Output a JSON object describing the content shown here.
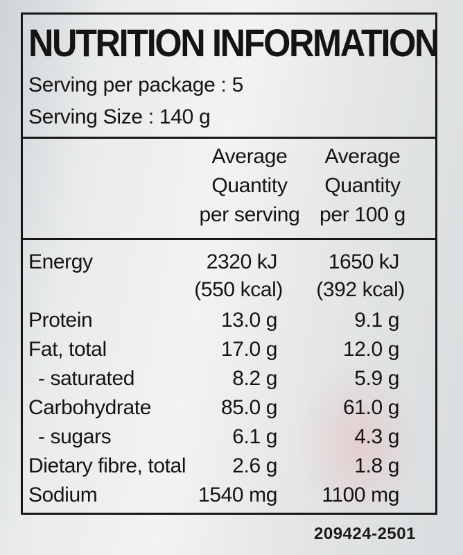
{
  "panel": {
    "title": "NUTRITION INFORMATION",
    "servings_per_package": "Serving per package : 5",
    "serving_size": "Serving Size : 140 g"
  },
  "columns": {
    "per_serving": [
      "Average",
      "Quantity",
      "per serving"
    ],
    "per_100g": [
      "Average",
      "Quantity",
      "per 100 g"
    ]
  },
  "rows": [
    {
      "label": "Energy",
      "per_serving": "2320 kJ",
      "per_100g": "1650 kJ",
      "indent": false
    },
    {
      "label": "",
      "per_serving": "(550 kcal)",
      "per_100g": "(392 kcal)",
      "indent": false
    },
    {
      "label": "Protein",
      "per_serving": "13.0 g",
      "per_100g": "9.1 g",
      "indent": false
    },
    {
      "label": "Fat, total",
      "per_serving": "17.0 g",
      "per_100g": "12.0 g",
      "indent": false
    },
    {
      "label": "- saturated",
      "per_serving": "8.2 g",
      "per_100g": "5.9 g",
      "indent": true
    },
    {
      "label": "Carbohydrate",
      "per_serving": "85.0 g",
      "per_100g": "61.0 g",
      "indent": false
    },
    {
      "label": "- sugars",
      "per_serving": "6.1 g",
      "per_100g": "4.3 g",
      "indent": true
    },
    {
      "label": "Dietary fibre, total",
      "per_serving": "2.6 g",
      "per_100g": "1.8 g",
      "indent": false
    },
    {
      "label": "Sodium",
      "per_serving": "1540 mg",
      "per_100g": "1100 mg",
      "indent": false
    }
  ],
  "product_code": "209424-2501"
}
